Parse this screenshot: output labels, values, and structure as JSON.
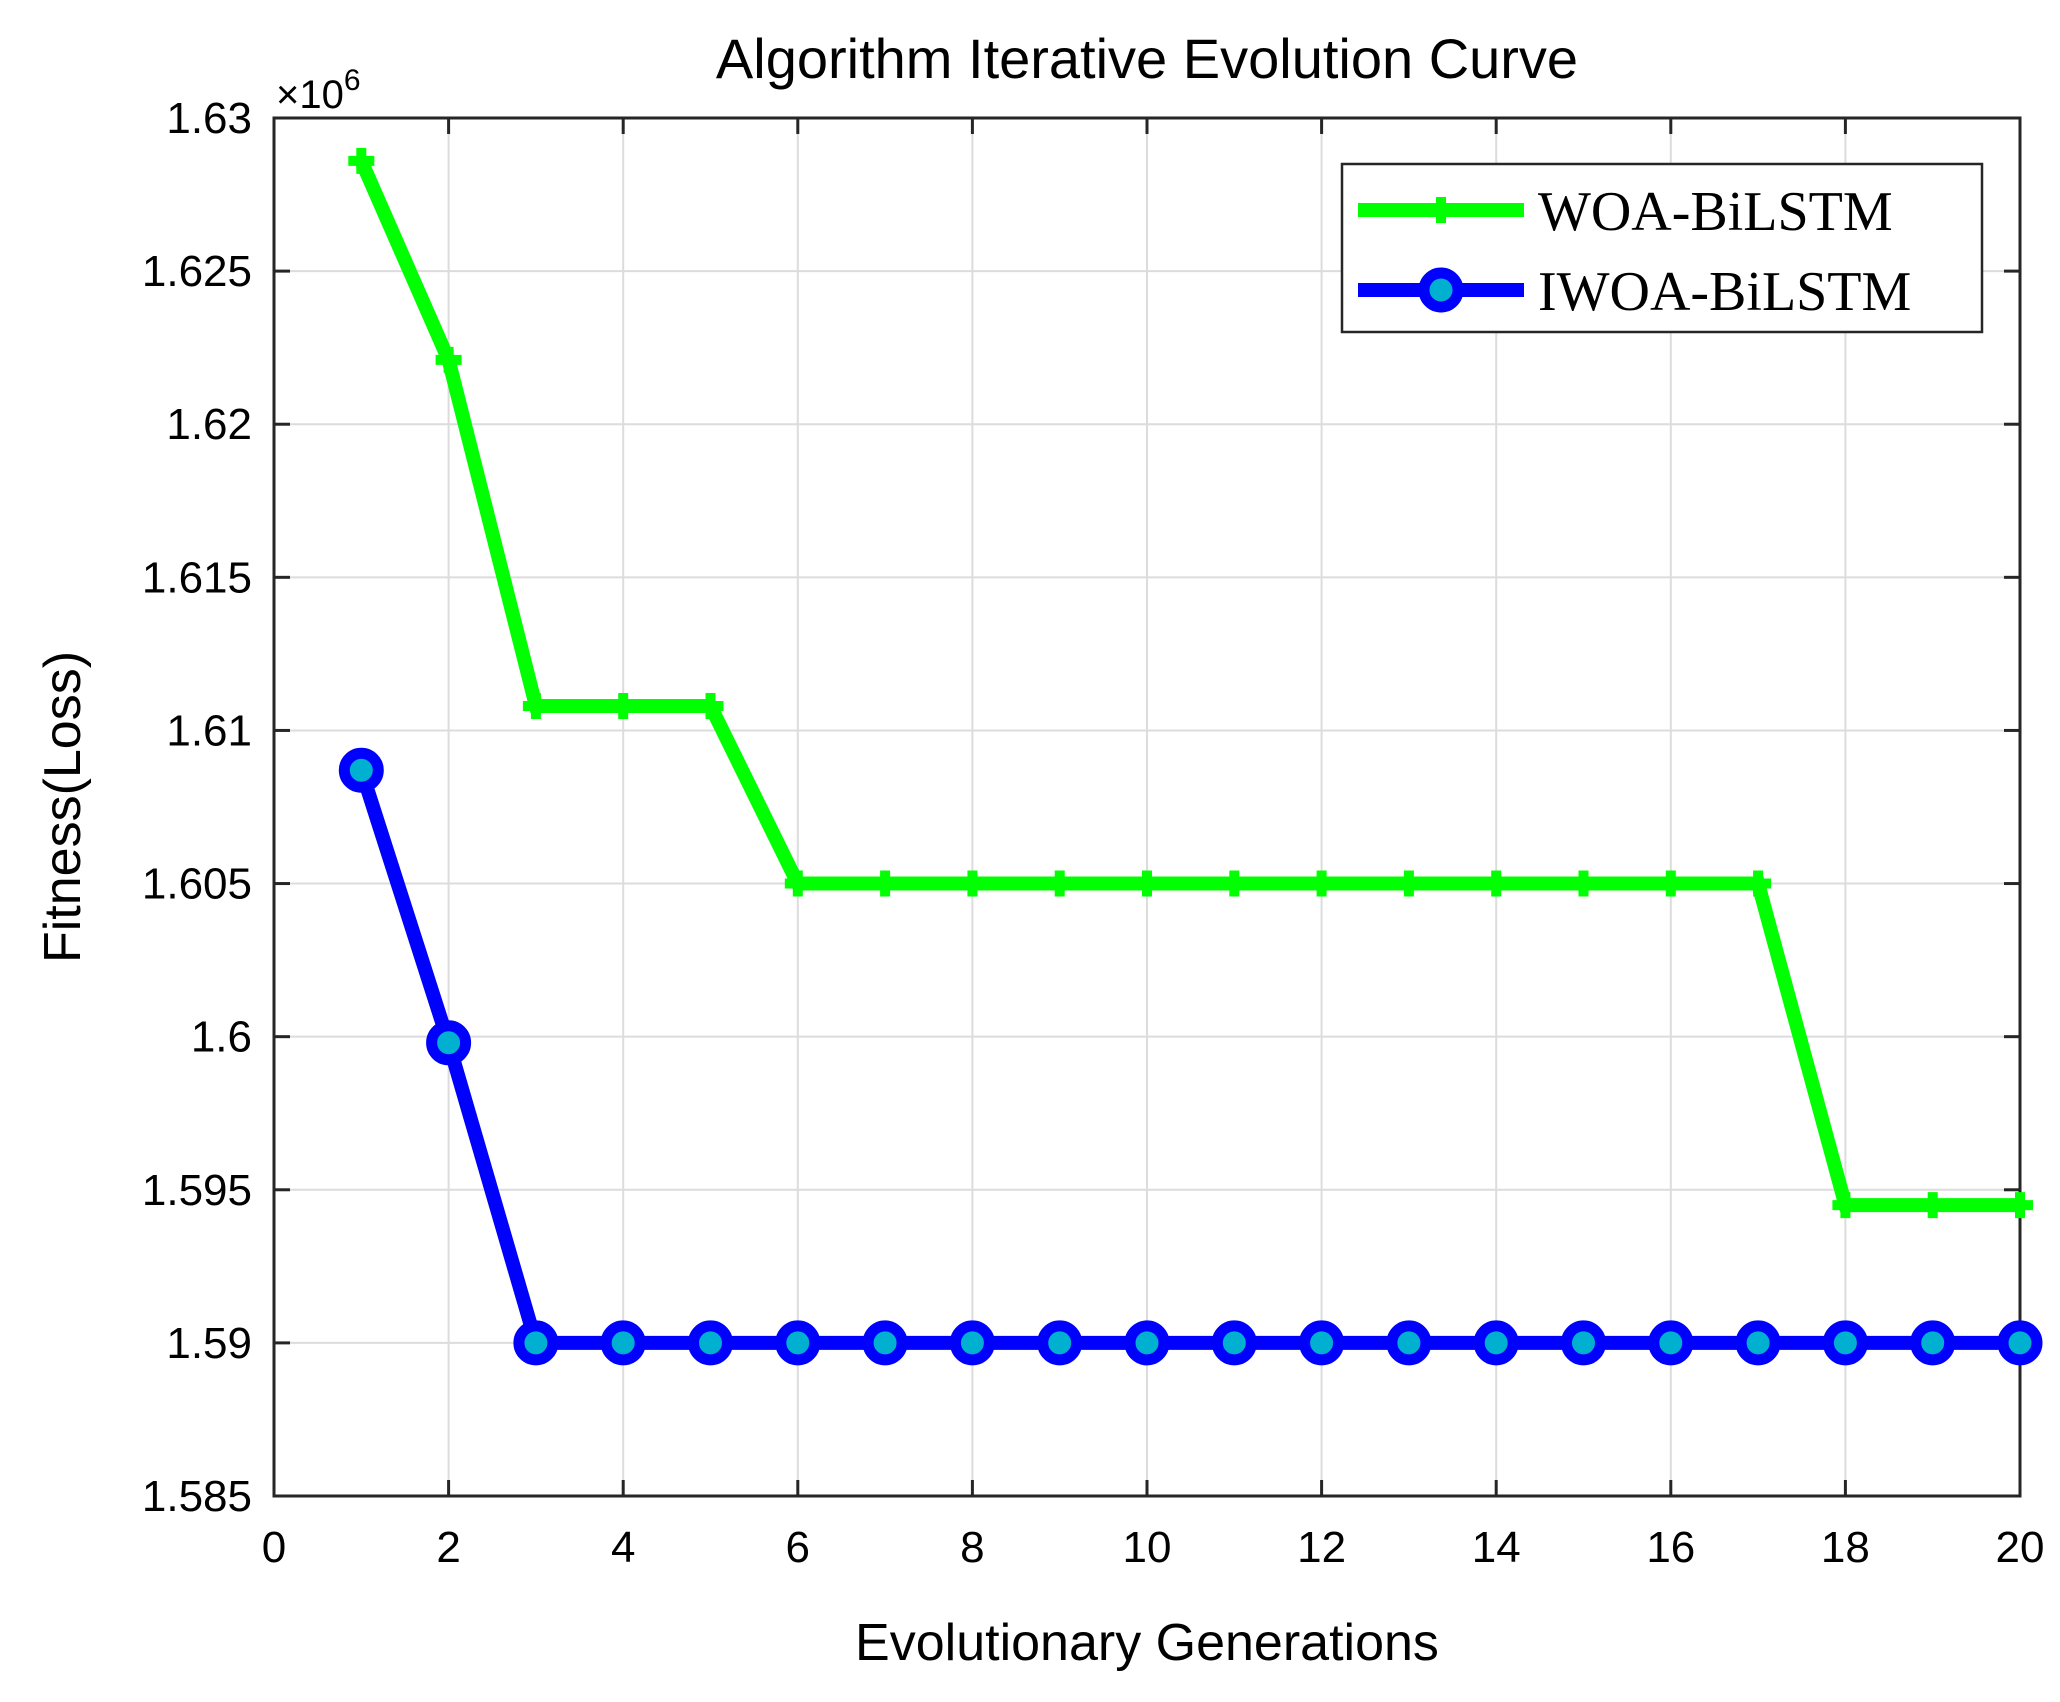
{
  "chart_data": {
    "type": "line",
    "title": "Algorithm Iterative Evolution Curve",
    "xlabel": "Evolutionary Generations",
    "ylabel": "Fitness(Loss)",
    "xlim": [
      0,
      20
    ],
    "ylim": [
      1.585,
      1.63
    ],
    "y_multiplier_prefix": "×10",
    "y_multiplier_exponent": "6",
    "xticks": [
      0,
      2,
      4,
      6,
      8,
      10,
      12,
      14,
      16,
      18,
      20
    ],
    "xtick_labels": [
      "0",
      "2",
      "4",
      "6",
      "8",
      "10",
      "12",
      "14",
      "16",
      "18",
      "20"
    ],
    "yticks": [
      1.585,
      1.59,
      1.595,
      1.6,
      1.605,
      1.61,
      1.615,
      1.62,
      1.625,
      1.63
    ],
    "ytick_labels": [
      "1.585",
      "1.59",
      "1.595",
      "1.6",
      "1.605",
      "1.61",
      "1.615",
      "1.62",
      "1.625",
      "1.63"
    ],
    "grid": true,
    "legend_position": "top-right",
    "x": [
      1,
      2,
      3,
      4,
      5,
      6,
      7,
      8,
      9,
      10,
      11,
      12,
      13,
      14,
      15,
      16,
      17,
      18,
      19,
      20
    ],
    "series": [
      {
        "name": "WOA-BiLSTM",
        "color": "#00ff00",
        "marker": "plus",
        "values": [
          1.6286,
          1.6221,
          1.6108,
          1.6108,
          1.6108,
          1.605,
          1.605,
          1.605,
          1.605,
          1.605,
          1.605,
          1.605,
          1.605,
          1.605,
          1.605,
          1.605,
          1.605,
          1.5945,
          1.5945,
          1.5945
        ]
      },
      {
        "name": "IWOA-BiLSTM",
        "color": "#0000ff",
        "marker": "circle",
        "values": [
          1.6087,
          1.5998,
          1.59,
          1.59,
          1.59,
          1.59,
          1.59,
          1.59,
          1.59,
          1.59,
          1.59,
          1.59,
          1.59,
          1.59,
          1.59,
          1.59,
          1.59,
          1.59,
          1.59,
          1.59
        ]
      }
    ]
  }
}
